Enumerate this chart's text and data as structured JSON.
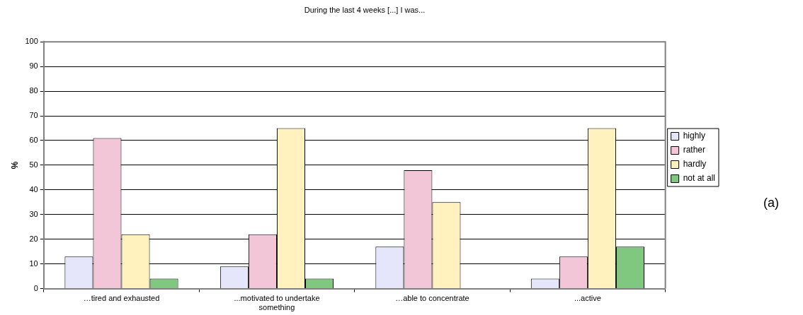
{
  "chart_data": {
    "type": "bar",
    "title": "During the last 4 weeks [...] I was...",
    "ylabel": "%",
    "categories": [
      "…tired and exhausted",
      "...motivated to undertake something",
      "…able to concentrate",
      "...active"
    ],
    "series": [
      {
        "name": "highly",
        "color": "#e6e6fa",
        "values": [
          13,
          9,
          17,
          4
        ]
      },
      {
        "name": "rather",
        "color": "#f2c6d6",
        "values": [
          61,
          22,
          48,
          13
        ]
      },
      {
        "name": "hardly",
        "color": "#fff2bf",
        "values": [
          22,
          65,
          35,
          65
        ]
      },
      {
        "name": "not at all",
        "color": "#80c880",
        "values": [
          4,
          4,
          null,
          17
        ]
      }
    ],
    "ylim": [
      0,
      100
    ],
    "yticks": [
      0,
      10,
      20,
      30,
      40,
      50,
      60,
      70,
      80,
      90,
      100
    ],
    "grid": "y",
    "legend": "right",
    "annotations": [
      "(a)"
    ]
  }
}
